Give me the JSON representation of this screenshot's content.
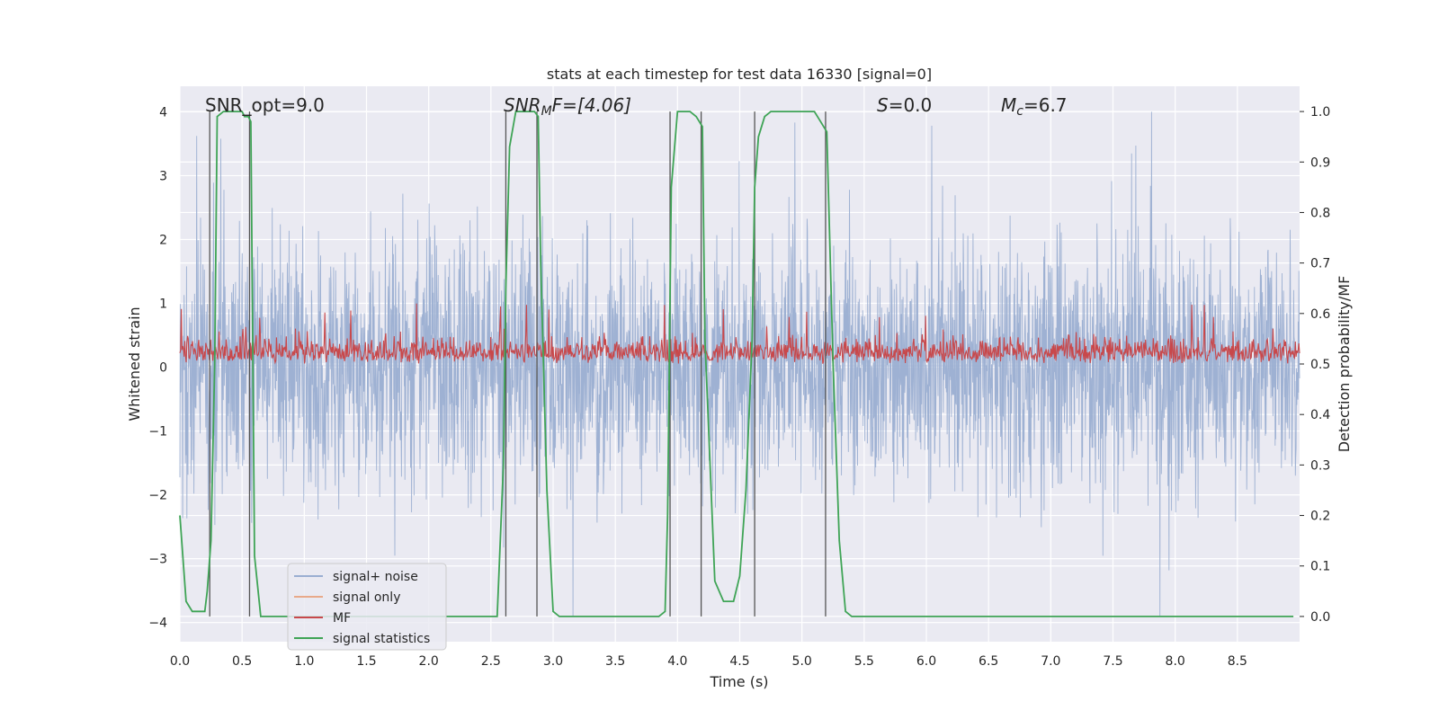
{
  "chart_data": {
    "type": "line",
    "title": "stats at each timestep for test data 16330 [signal=0]",
    "xlabel": "Time (s)",
    "ylabel_left": "Whitened strain",
    "ylabel_right": "Detection probability/MF",
    "xlim": [
      0.0,
      9.0
    ],
    "ylim_left": [
      -4.3,
      4.4
    ],
    "ylim_right": [
      -0.05,
      1.05
    ],
    "x_ticks": [
      "0.0",
      "0.5",
      "1.0",
      "1.5",
      "2.0",
      "2.5",
      "3.0",
      "3.5",
      "4.0",
      "4.5",
      "5.0",
      "5.5",
      "6.0",
      "6.5",
      "7.0",
      "7.5",
      "8.0",
      "8.5"
    ],
    "y_ticks_left": [
      "4",
      "3",
      "2",
      "1",
      "0",
      "−1",
      "−2",
      "−3",
      "−4"
    ],
    "y_ticks_right": [
      "1.0",
      "0.9",
      "0.8",
      "0.7",
      "0.6",
      "0.5",
      "0.4",
      "0.3",
      "0.2",
      "0.1",
      "0.0"
    ],
    "grid": true,
    "legend_position": "lower-left",
    "annotations": {
      "snr_opt": "SNR_opt=9.0",
      "snr_mf_sym": "SNR",
      "snr_mf_sub": "M",
      "snr_mf_rest": "F=[4.06]",
      "s_sym": "S",
      "s_rest": "=0.0",
      "mc_sym": "M",
      "mc_sub": "c",
      "mc_rest": "=6.7"
    },
    "series": [
      {
        "name": "signal+ noise",
        "color": "#9aaed1",
        "axis": "left",
        "envelope_min": -3.9,
        "envelope_max": 4.0,
        "typical_range": [
          -1.6,
          1.6
        ]
      },
      {
        "name": "signal only",
        "color": "#e8a98a",
        "axis": "left",
        "values": [
          0
        ]
      },
      {
        "name": "MF",
        "color": "#c8484b",
        "axis": "left",
        "baseline": 0.05,
        "typical_max": 0.6,
        "peak_max": 1.0
      },
      {
        "name": "signal statistics",
        "color": "#3fa456",
        "axis": "right",
        "x": [
          0.0,
          0.05,
          0.1,
          0.15,
          0.2,
          0.22,
          0.25,
          0.28,
          0.3,
          0.35,
          0.4,
          0.45,
          0.5,
          0.52,
          0.55,
          0.57,
          0.6,
          0.65,
          0.7,
          0.8,
          1.0,
          1.5,
          2.0,
          2.5,
          2.55,
          2.6,
          2.62,
          2.65,
          2.7,
          2.75,
          2.8,
          2.85,
          2.88,
          2.9,
          2.95,
          3.0,
          3.05,
          3.1,
          3.5,
          3.8,
          3.85,
          3.9,
          3.92,
          3.95,
          4.0,
          4.1,
          4.15,
          4.2,
          4.22,
          4.3,
          4.37,
          4.45,
          4.5,
          4.55,
          4.6,
          4.62,
          4.65,
          4.7,
          4.75,
          4.8,
          4.85,
          4.9,
          5.0,
          5.1,
          5.15,
          5.2,
          5.25,
          5.3,
          5.35,
          5.4,
          5.5,
          6.0,
          7.0,
          8.0,
          8.95
        ],
        "y": [
          0.2,
          0.03,
          0.01,
          0.01,
          0.01,
          0.05,
          0.15,
          0.5,
          0.99,
          1.0,
          1.0,
          1.0,
          1.0,
          0.99,
          0.99,
          0.98,
          0.12,
          0.0,
          0.0,
          0.0,
          0.0,
          0.0,
          0.0,
          0.0,
          0.0,
          0.3,
          0.65,
          0.93,
          1.0,
          1.0,
          1.0,
          1.0,
          0.99,
          0.7,
          0.25,
          0.01,
          0.0,
          0.0,
          0.0,
          0.0,
          0.0,
          0.01,
          0.2,
          0.85,
          1.0,
          1.0,
          0.99,
          0.97,
          0.55,
          0.07,
          0.03,
          0.03,
          0.08,
          0.25,
          0.55,
          0.85,
          0.95,
          0.99,
          1.0,
          1.0,
          1.0,
          1.0,
          1.0,
          1.0,
          0.98,
          0.96,
          0.5,
          0.15,
          0.01,
          0.0,
          0.0,
          0.0,
          0.0,
          0.0,
          0.0
        ]
      },
      {
        "name": "",
        "kind": "vlines",
        "color": "#555555",
        "axis": "right",
        "x": [
          0.24,
          0.56,
          2.62,
          2.87,
          3.94,
          4.19,
          4.62,
          5.19
        ],
        "y_range": [
          0.0,
          1.0
        ]
      }
    ]
  }
}
